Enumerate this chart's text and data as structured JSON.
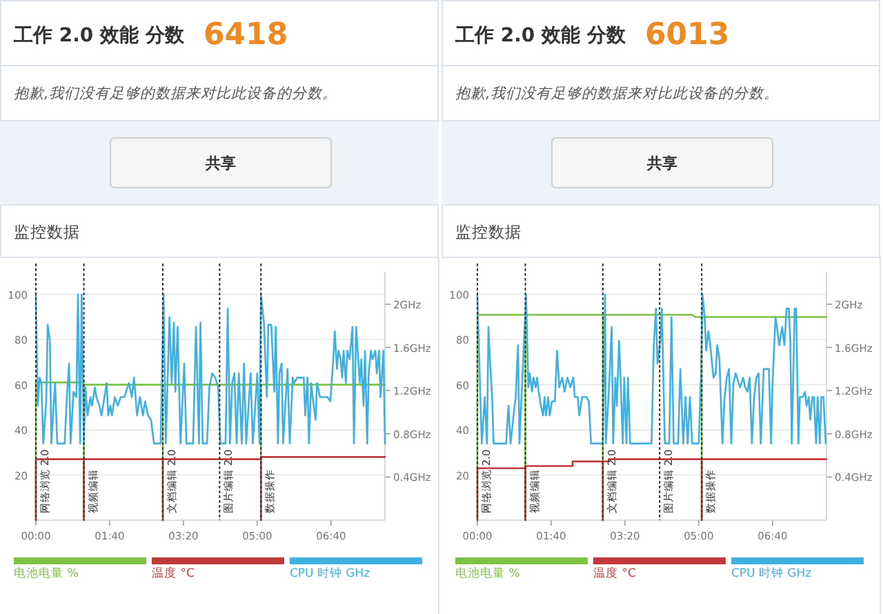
{
  "chart_data": [
    {
      "type": "line",
      "title": "工作 2.0 效能 分数",
      "annotations": [
        "6418",
        "抱歉,我们没有足够的数据来对比此设备的分数。",
        "共享",
        "监控数据"
      ],
      "xlim": [
        0,
        473
      ],
      "xticks": [
        {
          "value": 0,
          "label": "00:00"
        },
        {
          "value": 100,
          "label": "01:40"
        },
        {
          "value": 200,
          "label": "03:20"
        },
        {
          "value": 300,
          "label": "05:00"
        },
        {
          "value": 400,
          "label": "06:40"
        }
      ],
      "ylim": [
        0,
        110
      ],
      "yticks": [
        20,
        40,
        60,
        80,
        100
      ],
      "y2lim": [
        0,
        2.3
      ],
      "y2ticks": [
        {
          "value": 0.4,
          "label": "0.4GHz"
        },
        {
          "value": 0.8,
          "label": "0.8GHz"
        },
        {
          "value": 1.2,
          "label": "1.2GHz"
        },
        {
          "value": 1.6,
          "label": "1.6GHz"
        },
        {
          "value": 2,
          "label": "2GHz"
        }
      ],
      "grid": "y",
      "legend": "bottom",
      "ref_lines": [
        {
          "axis": "x",
          "value": 0,
          "label": "网络浏览 2.0"
        },
        {
          "axis": "x",
          "value": 65,
          "label": "视频编辑"
        },
        {
          "axis": "x",
          "value": 172,
          "label": "文档编辑 2.0"
        },
        {
          "axis": "x",
          "value": 249,
          "label": "图片编辑 2.0"
        },
        {
          "axis": "x",
          "value": 305,
          "label": "数据操作"
        }
      ],
      "series": [
        {
          "name": "电池电量 %",
          "color": "#7dc242",
          "x": [
            0,
            0,
            65,
            65,
            65,
            172,
            172,
            172,
            305,
            305,
            305,
            473
          ],
          "values": [
            0,
            61,
            61,
            0,
            60,
            60,
            0,
            60,
            60,
            0,
            60,
            60
          ]
        },
        {
          "name": "温度 °C",
          "color": "#c0393b",
          "x": [
            0,
            0,
            65,
            65,
            65,
            172,
            172,
            172,
            305,
            305,
            305,
            473
          ],
          "values": [
            0,
            27,
            27,
            0,
            27,
            27,
            0,
            27,
            27,
            0,
            28,
            28
          ]
        },
        {
          "name": "CPU 时钟 GHz",
          "color": "#3fb0e0",
          "axis": "y2",
          "x": [
            0,
            2.5,
            5,
            7.5,
            10,
            14,
            16,
            19,
            21,
            24,
            26,
            29,
            39,
            42,
            45,
            47,
            51,
            55,
            57,
            60,
            62,
            65,
            67,
            70,
            74,
            76,
            80,
            82,
            86,
            89,
            92,
            96,
            98,
            101,
            103,
            107,
            111,
            115,
            120,
            126,
            130,
            133,
            137,
            141,
            145,
            148,
            152,
            156,
            160,
            169,
            173,
            176,
            181,
            184,
            187,
            189,
            192,
            196,
            201,
            204,
            213,
            217,
            221,
            223,
            226,
            232,
            235,
            239,
            243,
            247,
            250,
            257,
            260,
            263,
            266,
            269,
            272,
            275,
            279,
            282,
            285,
            291,
            294,
            300,
            303,
            305,
            309,
            313,
            315,
            319,
            323,
            325,
            328,
            330,
            333,
            335,
            338,
            341,
            344,
            348,
            350,
            354,
            363,
            365,
            368,
            370,
            373,
            375,
            379,
            381,
            385,
            395,
            399,
            403,
            405,
            408,
            410,
            413,
            415,
            417,
            420,
            422,
            425,
            429,
            431,
            434,
            436,
            439,
            441,
            444,
            446,
            449,
            451,
            454,
            456,
            460,
            462,
            465,
            467,
            471,
            473
          ],
          "values": [
            2.09,
            1.06,
            1.32,
            1.27,
            0.71,
            1.1,
            1.81,
            1.66,
            0.71,
            1.06,
            1.27,
            0.71,
            0.71,
            1.14,
            1.45,
            0.71,
            1.19,
            1.14,
            2.09,
            0.71,
            2.09,
            0.71,
            1.23,
            0.97,
            1.14,
            1.06,
            1.23,
            1.14,
            1.06,
            0.97,
            1.1,
            1.27,
            0.97,
            1.06,
            0.97,
            1.14,
            1.06,
            1.14,
            1.14,
            1.27,
            1.14,
            1.32,
            0.97,
            1.14,
            0.97,
            1.1,
            0.97,
            0.93,
            0.71,
            0.71,
            2.09,
            0.71,
            1.88,
            1.27,
            1.83,
            1.19,
            1.79,
            0.71,
            1.45,
            0.71,
            0.71,
            1.79,
            0.71,
            1.83,
            0.71,
            0.71,
            1.23,
            1.36,
            1.32,
            1.23,
            0.71,
            0.71,
            1.96,
            0.71,
            1.27,
            1.36,
            0.71,
            1.36,
            0.71,
            1.45,
            0.71,
            1.36,
            0.71,
            1.36,
            0.71,
            2.09,
            1.83,
            1.14,
            1.81,
            1.81,
            1.19,
            1.79,
            0.71,
            1.36,
            1.45,
            0.71,
            1.06,
            1.4,
            0.71,
            1.32,
            1.27,
            1.32,
            1.32,
            0.97,
            1.32,
            0.71,
            1.27,
            1.14,
            0.93,
            1.27,
            1.14,
            1.14,
            1.1,
            1.49,
            1.75,
            1.4,
            1.57,
            1.49,
            1.32,
            1.57,
            1.27,
            1.57,
            1.49,
            1.79,
            0.71,
            1.79,
            1.57,
            1.27,
            1.49,
            1.06,
            1.57,
            0.71,
            1.36,
            1.57,
            1.49,
            1.57,
            1.36,
            1.57,
            1.14,
            1.57,
            0.71
          ]
        }
      ]
    },
    {
      "type": "line",
      "title": "工作 2.0 效能 分数",
      "annotations": [
        "6013",
        "抱歉,我们没有足够的数据来对比此设备的分数。",
        "共享",
        "监控数据"
      ],
      "xlim": [
        0,
        473
      ],
      "xticks": [
        {
          "value": 0,
          "label": "00:00"
        },
        {
          "value": 100,
          "label": "01:40"
        },
        {
          "value": 200,
          "label": "03:20"
        },
        {
          "value": 300,
          "label": "05:00"
        },
        {
          "value": 400,
          "label": "06:40"
        }
      ],
      "ylim": [
        0,
        110
      ],
      "yticks": [
        20,
        40,
        60,
        80,
        100
      ],
      "y2lim": [
        0,
        2.3
      ],
      "y2ticks": [
        {
          "value": 0.4,
          "label": "0.4GHz"
        },
        {
          "value": 0.8,
          "label": "0.8GHz"
        },
        {
          "value": 1.2,
          "label": "1.2GHz"
        },
        {
          "value": 1.6,
          "label": "1.6GHz"
        },
        {
          "value": 2,
          "label": "2GHz"
        }
      ],
      "grid": "y",
      "legend": "bottom",
      "ref_lines": [
        {
          "axis": "x",
          "value": 0,
          "label": "网络浏览 2.0"
        },
        {
          "axis": "x",
          "value": 65,
          "label": "视频编辑"
        },
        {
          "axis": "x",
          "value": 170,
          "label": "文档编辑 2.0"
        },
        {
          "axis": "x",
          "value": 247,
          "label": "图片编辑 2.0"
        },
        {
          "axis": "x",
          "value": 304,
          "label": "数据操作"
        }
      ],
      "series": [
        {
          "name": "电池电量 %",
          "color": "#7dc242",
          "x": [
            0,
            0,
            65,
            65,
            65,
            170,
            170,
            170,
            291,
            295,
            304,
            304,
            304,
            473
          ],
          "values": [
            0,
            91,
            91,
            0,
            91,
            91,
            0,
            91,
            91,
            90,
            90,
            0,
            90,
            90
          ]
        },
        {
          "name": "温度 °C",
          "color": "#c0393b",
          "x": [
            0,
            0,
            65,
            65,
            65,
            129,
            129,
            170,
            170,
            170,
            178,
            178,
            304,
            304,
            304,
            473
          ],
          "values": [
            0,
            23,
            23,
            0,
            24,
            24,
            26,
            26,
            0,
            26,
            26,
            27,
            27,
            0,
            27,
            27
          ]
        },
        {
          "name": "CPU 时钟 GHz",
          "color": "#3fb0e0",
          "axis": "y2",
          "x": [
            0,
            4,
            6,
            10,
            13,
            15,
            17,
            20,
            22,
            39,
            42,
            45,
            49,
            52,
            55,
            57,
            66,
            69,
            71,
            74,
            76,
            79,
            81,
            83,
            86,
            89,
            91,
            93,
            96,
            98,
            101,
            105,
            108,
            111,
            115,
            118,
            122,
            126,
            130,
            132,
            136,
            138,
            142,
            148,
            151,
            154,
            170,
            173,
            174,
            177,
            179,
            182,
            184,
            187,
            189,
            192,
            194,
            197,
            199,
            202,
            204,
            207,
            236,
            239,
            242,
            244,
            248,
            250,
            254,
            260,
            263,
            266,
            272,
            275,
            279,
            282,
            285,
            288,
            291,
            300,
            303,
            305,
            308,
            310,
            313,
            315,
            318,
            320,
            323,
            325,
            328,
            332,
            335,
            338,
            341,
            344,
            347,
            350,
            354,
            356,
            360,
            363,
            366,
            369,
            372,
            375,
            378,
            381,
            384,
            388,
            395,
            398,
            400,
            404,
            406,
            409,
            413,
            416,
            419,
            422,
            424,
            426,
            430,
            432,
            435,
            437,
            441,
            444,
            446,
            449,
            451,
            454,
            456,
            459,
            461,
            464,
            466,
            469,
            472
          ],
          "values": [
            2.09,
            1.14,
            0.71,
            1.14,
            0.71,
            1.79,
            1.49,
            1.14,
            0.71,
            0.71,
            1.06,
            0.71,
            0.97,
            1.14,
            1.62,
            0.71,
            2.09,
            1.23,
            1.36,
            1.19,
            1.32,
            1.23,
            1.32,
            1.19,
            1.06,
            0.97,
            1.14,
            0.97,
            1.14,
            0.97,
            1.1,
            1.1,
            1.57,
            1.23,
            1.32,
            1.19,
            1.32,
            1.23,
            1.32,
            1.14,
            1.14,
            0.97,
            1.14,
            1.14,
            1.1,
            0.71,
            0.71,
            2.09,
            0.71,
            1.06,
            1.32,
            1.79,
            0.71,
            1.32,
            1.06,
            1.66,
            1.32,
            0.71,
            1.32,
            0.71,
            1.32,
            0.71,
            0.71,
            1.62,
            1.96,
            1.45,
            1.66,
            1.96,
            0.71,
            0.71,
            1.88,
            0.71,
            0.71,
            1.4,
            0.71,
            1.14,
            0.71,
            1.14,
            0.71,
            0.71,
            1.36,
            2.09,
            1.88,
            1.57,
            1.75,
            1.66,
            1.45,
            1.32,
            1.36,
            1.62,
            1.49,
            0.71,
            1.14,
            1.32,
            1.4,
            0.71,
            1.27,
            1.36,
            1.27,
            1.23,
            1.32,
            1.23,
            1.19,
            1.32,
            0.71,
            1.14,
            1.32,
            1.36,
            0.71,
            1.4,
            1.4,
            0.71,
            1.27,
            1.88,
            1.79,
            1.62,
            1.79,
            1.62,
            1.96,
            1.96,
            1.66,
            0.71,
            1.96,
            1.96,
            0.71,
            1.14,
            1.14,
            1.19,
            1.06,
            1.14,
            0.93,
            1.14,
            1.14,
            0.71,
            1.14,
            0.71,
            1.14,
            1.14,
            0.71
          ]
        }
      ]
    }
  ]
}
